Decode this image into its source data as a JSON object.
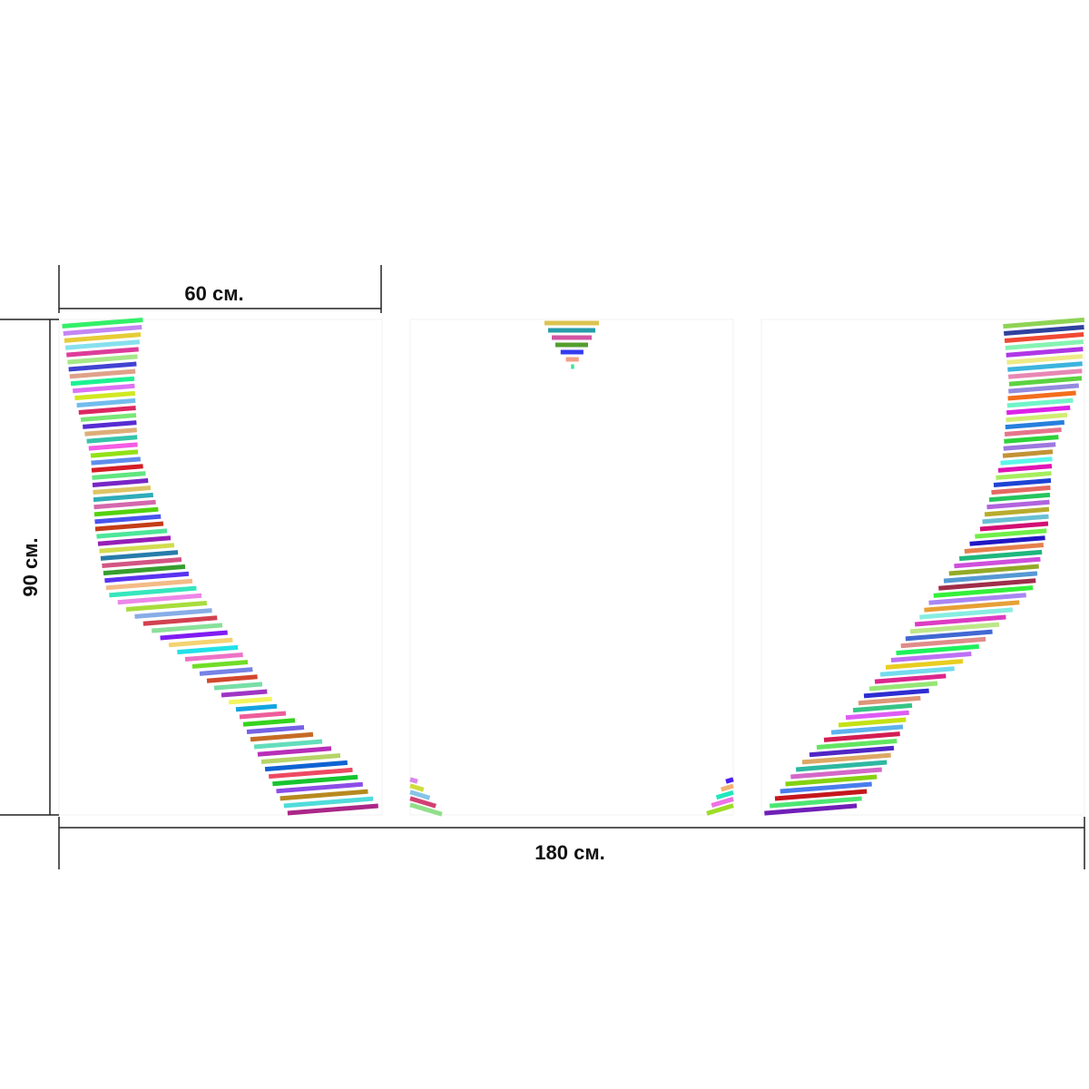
{
  "dimensions": {
    "panel_width": "60 см.",
    "height": "90 см.",
    "total_width": "180 см."
  }
}
